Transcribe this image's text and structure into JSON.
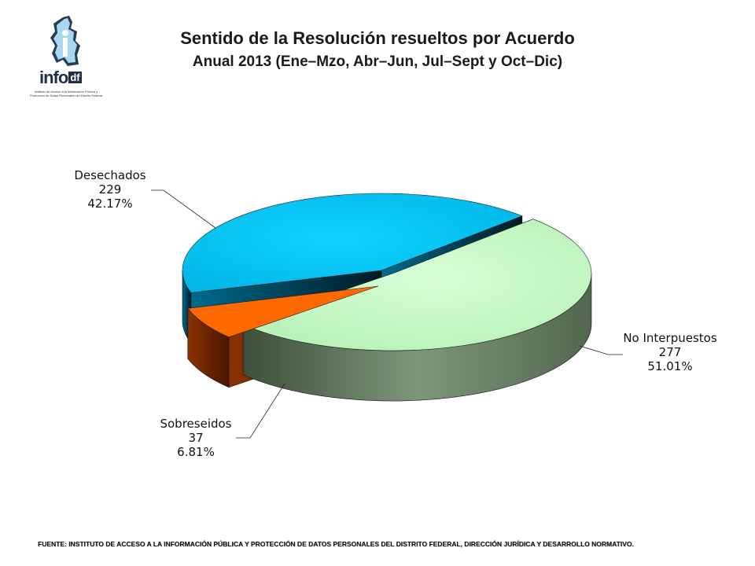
{
  "header": {
    "title": "Sentido de la Resolución resueltos por Acuerdo",
    "subtitle": "Anual 2013 (Ene–Mzo, Abr–Jun, Jul–Sept y Oct–Dic)"
  },
  "logo": {
    "word": "info",
    "suffix": "df",
    "caption": "Instituto de Acceso a la Información Pública y Protección de Datos Personales del Distrito Federal",
    "icon": "infodf-map-logo-icon"
  },
  "chart_data": {
    "type": "pie",
    "style": "3d-exploded",
    "slices": [
      {
        "label": "No Interpuestos",
        "value": 277,
        "percent": "51.01%",
        "color": "#c6fbc6",
        "side_color": "#4f654a"
      },
      {
        "label": "Sobreseidos",
        "value": 37,
        "percent": "6.81%",
        "color": "#ff6a00",
        "side_color": "#6e2400"
      },
      {
        "label": "Desechados",
        "value": 229,
        "percent": "42.17%",
        "color": "#00c8f8",
        "side_color": "#004f6a"
      }
    ],
    "legend": "none",
    "data_labels": "outside with leader lines"
  },
  "footer": {
    "source": "FUENTE: INSTITUTO DE ACCESO A LA INFORMACIÓN PÚBLICA Y PROTECCIÓN DE DATOS PERSONALES DEL DISTRITO FEDERAL, DIRECCIÓN JURÍDICA Y DESARROLLO NORMATIVO."
  }
}
